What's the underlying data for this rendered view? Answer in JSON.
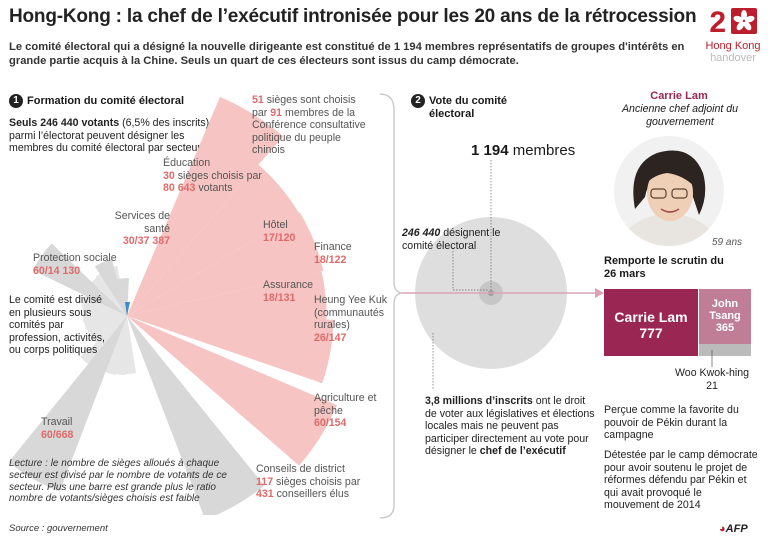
{
  "header": {
    "title": "Hong-Kong : la chef de l’exécutif intronisée pour les 20 ans de la rétrocession",
    "intro": "Le comité électoral qui a désigné la nouvelle dirigeante est constitué de 1 194 membres représentatifs de groupes d'intérêts en grande partie acquis à la Chine. Seuls un quart de ces électeurs sont issus du camp démocrate."
  },
  "logo": {
    "digit": "2",
    "line1": "Hong Kong",
    "line2": "handover"
  },
  "section1": {
    "number": "1",
    "title": "Formation du comité électoral",
    "voters_bold": "Seuls 246 440 votants",
    "voters_rest": " (6,5% des inscrits) parmi l’électorat peuvent désigner les membres du comité électoral par secteur",
    "divided": "Le comité est divisé en plusieurs sous comités par profession, activités, ou corps politiques",
    "note": "Lecture : le nombre de sièges alloués à chaque secteur est divisé par le nombre de votants de ce secteur. Plus une barre est grande plus le ratio nombre de votants/sièges choisis est faible",
    "source": "Source : gouvernement"
  },
  "sectors": {
    "cppcc": {
      "seats": "51",
      "text1": " sièges sont choisis par",
      "voters": "91",
      "text2": " membres de la Conférence consultative politique du peuple chinois"
    },
    "education": {
      "name": "Éducation",
      "seats": "30",
      "text1": " sièges choisis par ",
      "voters": "80 643",
      "text2": " votants"
    },
    "health": {
      "name": "Services de santé",
      "seats": "30",
      "voters": "37 387"
    },
    "hotel": {
      "name": "Hôtel",
      "seats": "17",
      "voters": "120"
    },
    "social": {
      "name": "Protection sociale",
      "seats": "60",
      "voters": "14 130"
    },
    "finance": {
      "name": "Finance",
      "seats": "18",
      "voters": "122"
    },
    "insurance": {
      "name": "Assurance",
      "seats": "18",
      "voters": "131"
    },
    "heung": {
      "name": "Heung Yee Kuk (communautés rurales)",
      "seats": "26",
      "voters": "147"
    },
    "agri": {
      "name": "Agriculture et pêche",
      "seats": "60",
      "voters": "154"
    },
    "labour": {
      "name": "Travail",
      "seats": "60",
      "voters": "668"
    },
    "district": {
      "name": "Conseils de district",
      "seats": "117",
      "text1": " sièges choisis par ",
      "voters": "431",
      "text2": " conseillers élus"
    },
    "slash": "/"
  },
  "section2": {
    "number": "2",
    "title": "Vote du comité électoral",
    "members_num": "1 194",
    "members_word": " membres",
    "designate_num": "246 440",
    "designate_rest": " désignent le comité électoral",
    "millions_bold": "3,8 millions d’inscrits",
    "millions_rest": " ont le droit de voter aux législatives et élections locales mais ne peuvent pas participer directement au vote pour désigner le ",
    "millions_end": "chef de l’exécutif"
  },
  "section3": {
    "name": "Carrie Lam",
    "role": "Ancienne chef adjoint du gouvernement",
    "age": "59 ans",
    "won": "Remporte le scrutin du 26 mars",
    "candidates": [
      {
        "name": "Carrie Lam",
        "votes": "777",
        "color": "#9a2654"
      },
      {
        "name": "John Tsang",
        "votes": "365",
        "color": "#c07d96"
      },
      {
        "name": "Woo Kwok-hing",
        "votes": "21",
        "color": "#bbbbbb"
      }
    ],
    "favorite": "Perçue comme la favorite du pouvoir de Pékin durant la campagne",
    "hated": "Détestée par le camp démocrate pour avoir soutenu le projet de réformes défendu par Pékin et qui avait provoqué le mouvement de 2014"
  },
  "afp": "AFP",
  "colors": {
    "accent": "#f6c4c2",
    "grey": "#d8d8d8",
    "brand": "#9a2654",
    "red": "#bd1e2d"
  },
  "chart_data": {
    "type": "polar-bar",
    "title": "Formation du comité électoral",
    "categories": [
      "Conférence consultative politique du peuple chinois",
      "Éducation",
      "Services de santé",
      "Hôtel",
      "Protection sociale",
      "Finance",
      "Assurance",
      "Heung Yee Kuk (communautés rurales)",
      "Agriculture et pêche",
      "Travail",
      "Conseils de district"
    ],
    "series": [
      {
        "name": "sièges",
        "values": [
          51,
          30,
          30,
          17,
          60,
          18,
          18,
          26,
          60,
          60,
          117
        ]
      },
      {
        "name": "votants",
        "values": [
          91,
          80643,
          37387,
          120,
          14130,
          122,
          131,
          147,
          154,
          668,
          431
        ]
      }
    ]
  }
}
